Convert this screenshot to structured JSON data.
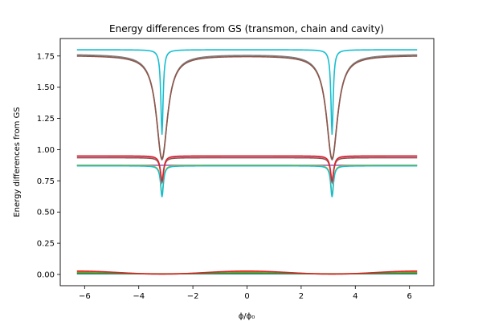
{
  "chart_data": {
    "type": "line",
    "title": "Energy differences from GS (transmon, chain and cavity)",
    "xlabel": "ϕ/ϕ₀",
    "ylabel": "Energy differences from GS",
    "xlim": [
      -6.9,
      6.9
    ],
    "ylim": [
      -0.09,
      1.89
    ],
    "xticks": [
      -6,
      -4,
      -2,
      0,
      2,
      4,
      6
    ],
    "xtick_labels": [
      "−6",
      "−4",
      "−2",
      "0",
      "2",
      "4",
      "6"
    ],
    "yticks": [
      0.0,
      0.25,
      0.5,
      0.75,
      1.0,
      1.25,
      1.5,
      1.75
    ],
    "ytick_labels": [
      "0.00",
      "0.25",
      "0.50",
      "0.75",
      "1.00",
      "1.25",
      "1.50",
      "1.75"
    ],
    "grid": false,
    "legend": "none",
    "x_range": [
      -6.2832,
      6.2832
    ],
    "dip_positions": [
      -3.1416,
      3.1416
    ],
    "series": [
      {
        "color": "#1f77b4",
        "base": 0.005,
        "curve": "flat"
      },
      {
        "color": "#ff7f0e",
        "base": 0.012,
        "curve": "cosine",
        "amplitude": 0.007
      },
      {
        "color": "#2ca02c",
        "base": 0.008,
        "curve": "cosine",
        "amplitude": 0.004
      },
      {
        "color": "#d62728",
        "base": 0.015,
        "curve": "cosine",
        "amplitude": 0.012
      },
      {
        "color": "#9467bd",
        "base": 0.875,
        "curve": "flat"
      },
      {
        "color": "#8c564b",
        "base": 0.935,
        "curve": "mid_dip",
        "dip_to": 0.75
      },
      {
        "color": "#e377c2",
        "base": 0.945,
        "curve": "mid_dip",
        "dip_to": 0.76
      },
      {
        "color": "#7f7f7f",
        "base": 1.765,
        "curve": "wide_dip",
        "dip_to": 0.92
      },
      {
        "color": "#bcbd22",
        "base": 0.875,
        "curve": "small_dip",
        "dip_to": 0.63
      },
      {
        "color": "#17becf",
        "base": 1.8,
        "curve": "narrow_dip",
        "dip_to": 1.12
      },
      {
        "color": "#8c564b",
        "base": 1.755,
        "curve": "wide_dip",
        "dip_to": 0.93
      },
      {
        "color": "#17becf",
        "base": 0.87,
        "curve": "small_dip",
        "dip_to": 0.62
      },
      {
        "color": "#d62728",
        "base": 0.95,
        "curve": "mid_dip",
        "dip_to": 0.74
      }
    ]
  }
}
